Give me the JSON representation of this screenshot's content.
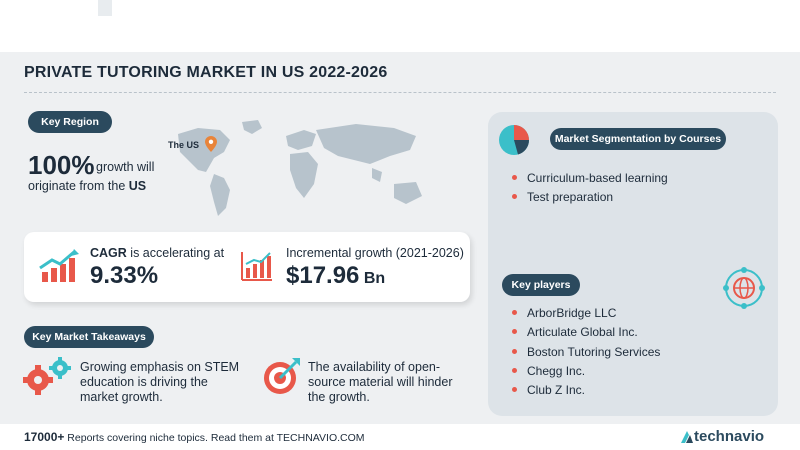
{
  "header": {
    "title": "PRIVATE TUTORING MARKET IN US 2022-2026"
  },
  "key_region": {
    "label": "Key Region",
    "map_label": "The US",
    "percent": "100%",
    "growth_text_1": "growth will",
    "growth_text_2": "originate from the ",
    "growth_text_region": "US"
  },
  "cagr": {
    "label_bold": "CAGR",
    "label_rest": " is accelerating at",
    "value": "9.33%"
  },
  "incremental": {
    "label": "Incremental growth (2021-2026)",
    "value": "$17.96",
    "unit": " Bn"
  },
  "takeaways": {
    "label": "Key Market Takeaways",
    "driver": [
      "Growing emphasis on STEM",
      "education is driving the",
      "market growth."
    ],
    "challenge": [
      "The availability of open-",
      "source material will hinder",
      "the growth."
    ]
  },
  "segmentation": {
    "label": "Market Segmentation by Courses",
    "items": [
      "Curriculum-based learning",
      "Test preparation"
    ]
  },
  "players": {
    "label": "Key players",
    "items": [
      "ArborBridge LLC",
      "Articulate Global Inc.",
      "Boston Tutoring Services",
      "Chegg Inc.",
      "Club Z Inc."
    ]
  },
  "footer": {
    "count": "17000+",
    "text": " Reports covering niche topics. Read them at TECHNAVIO.COM",
    "brand": "technavio"
  },
  "colors": {
    "navy": "#2b4a5e",
    "accent_red": "#e8584a",
    "accent_teal": "#3bbfc9",
    "panel": "#dde3e8"
  }
}
